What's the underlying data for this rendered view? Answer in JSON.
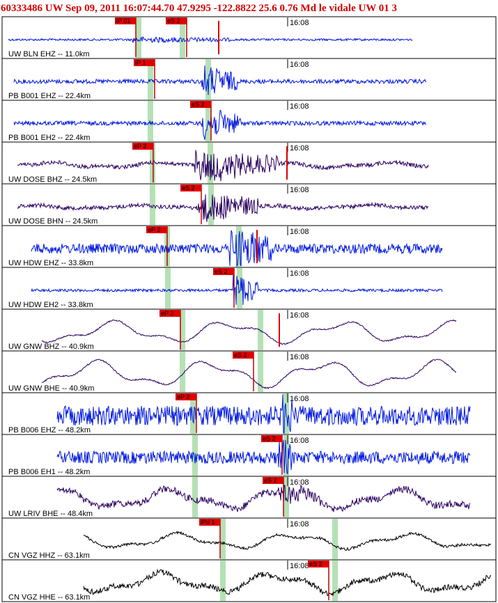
{
  "header": {
    "title": "60333486 UW Sep 09, 2011 16:07:44.70    47.9295 -122.8822 25.6 0.76 Md le vidale UW 01   3"
  },
  "colors": {
    "header_text": "#d40000",
    "blue_trace": "#0018e0",
    "purple_trace": "#2a0060",
    "black_trace": "#000000",
    "pick": "#e00000",
    "band": "#a8dca8"
  },
  "time_marker": "16:08",
  "panels": [
    {
      "station": "UW BLN EHZ -- 11.0km",
      "color": "blue_trace",
      "picks": [
        {
          "label": "iP 01"
        },
        {
          "label": "eS 2"
        }
      ]
    },
    {
      "station": "PB B001 EHZ -- 22.4km",
      "color": "blue_trace",
      "picks": [
        {
          "label": "iP 1"
        }
      ]
    },
    {
      "station": "PB B001 EH2 -- 22.4km",
      "color": "blue_trace",
      "picks": [
        {
          "label": "eS 2"
        }
      ]
    },
    {
      "station": "UW DOSE BHZ -- 24.5km",
      "color": "purple_trace",
      "picks": [
        {
          "label": "eP 2"
        }
      ]
    },
    {
      "station": "UW DOSE BHN -- 24.5km",
      "color": "purple_trace",
      "picks": [
        {
          "label": "eS 2"
        }
      ]
    },
    {
      "station": "UW HDW EHZ -- 33.8km",
      "color": "blue_trace",
      "picks": [
        {
          "label": "eP 2"
        }
      ]
    },
    {
      "station": "UW HDW EH2 -- 33.8km",
      "color": "blue_trace",
      "picks": [
        {
          "label": "eS 2"
        }
      ]
    },
    {
      "station": "UW GNW BHZ -- 40.9km",
      "color": "purple_trace",
      "picks": [
        {
          "label": "eP 2"
        }
      ]
    },
    {
      "station": "UW GNW BHE -- 40.9km",
      "color": "purple_trace",
      "picks": [
        {
          "label": "eS 2"
        }
      ]
    },
    {
      "station": "PB B006 EHZ -- 48.2km",
      "color": "blue_trace",
      "picks": [
        {
          "label": "eP 2"
        }
      ]
    },
    {
      "station": "PB B006 EH1 -- 48.2km",
      "color": "blue_trace",
      "picks": [
        {
          "label": "eS 2"
        }
      ]
    },
    {
      "station": "UW LRIV BHE -- 48.4km",
      "color": "purple_trace",
      "picks": [
        {
          "label": "eS 2"
        }
      ]
    },
    {
      "station": "CN VGZ HHZ -- 63.1km",
      "color": "black_trace",
      "picks": [
        {
          "label": "iPd 1"
        }
      ]
    },
    {
      "station": "CN VGZ HHE -- 63.1km",
      "color": "black_trace",
      "picks": [
        {
          "label": "eS 2"
        }
      ]
    }
  ]
}
